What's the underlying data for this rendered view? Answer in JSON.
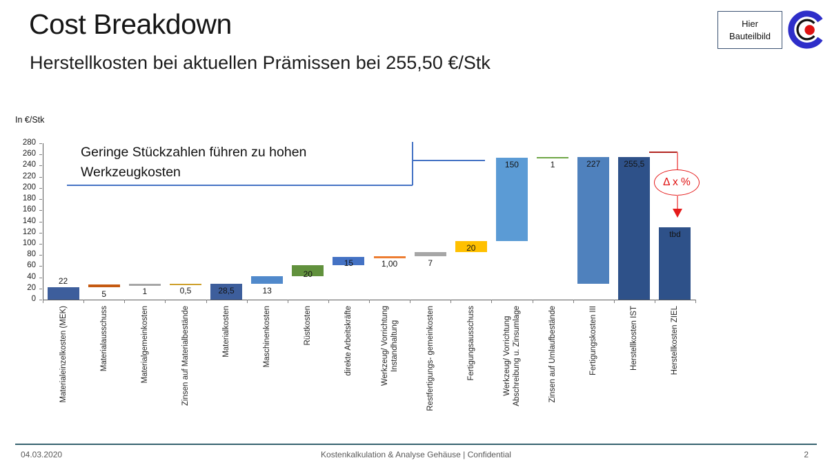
{
  "slide": {
    "title": "Cost Breakdown",
    "subtitle": "Herstellkosten bei aktuellen Prämissen bei 255,50 €/Stk",
    "placeholder_box": "Hier\nBauteilbild",
    "footer": {
      "date": "04.03.2020",
      "center": "Kostenkalkulation & Analyse Gehäuse | Confidential",
      "page": "2"
    }
  },
  "annotation": {
    "text": "Geringe Stückzahlen führen zu hohen\nWerkzeugkosten"
  },
  "delta_badge": {
    "label": "Δ x %"
  },
  "chart_data": {
    "type": "bar",
    "subtype": "waterfall",
    "unit_label": "In €/Stk",
    "ylim": [
      0,
      280
    ],
    "ytick_step": 20,
    "grid": false,
    "legend": false,
    "categories": [
      {
        "name": "Materialeinzelkosten (MEK)",
        "label": "22",
        "value": 22,
        "start": 0,
        "end": 22,
        "color": "#3d5e9c",
        "label_pos": "above"
      },
      {
        "name": "Materialausschuss",
        "label": "5",
        "value": 5,
        "start": 22,
        "end": 27,
        "color": "#c55a11",
        "label_pos": "below"
      },
      {
        "name": "Materialgemeinkosten",
        "label": "1",
        "value": 1,
        "start": 27,
        "end": 28,
        "color": "#a6a6a6",
        "label_pos": "below"
      },
      {
        "name": "Zinsen auf Materialbestände",
        "label": "0,5",
        "value": 0.5,
        "start": 28,
        "end": 28.5,
        "color": "#cea02c",
        "label_pos": "below"
      },
      {
        "name": "Materialkosten",
        "label": "28,5",
        "value": 28.5,
        "start": 0,
        "end": 28.5,
        "color": "#3d5e9c",
        "label_pos": "inside"
      },
      {
        "name": "Maschinenkosten",
        "label": "13",
        "value": 13,
        "start": 28.5,
        "end": 41.5,
        "color": "#5089cb",
        "label_pos": "below"
      },
      {
        "name": "Rüstkosten",
        "label": "20",
        "value": 20,
        "start": 41.5,
        "end": 61.5,
        "color": "#61913d",
        "label_pos": "edge"
      },
      {
        "name": "direkte Arbeitskräfte",
        "label": "15",
        "value": 15,
        "start": 61.5,
        "end": 76.5,
        "color": "#4472c4",
        "label_pos": "edge"
      },
      {
        "name": "Werkzeug/ Vorrichtung\nInstandhaltung",
        "label": "1,00",
        "value": 1,
        "start": 76.5,
        "end": 77.5,
        "color": "#ed7d31",
        "label_pos": "below"
      },
      {
        "name": "Restfertigungs- gemeinkosten",
        "label": "7",
        "value": 7,
        "start": 77.5,
        "end": 84.5,
        "color": "#a6a6a6",
        "label_pos": "below"
      },
      {
        "name": "Fertigungsausschuss",
        "label": "20",
        "value": 20,
        "start": 84.5,
        "end": 104.5,
        "color": "#ffc000",
        "label_pos": "inside"
      },
      {
        "name": "Werkzeug/ Vorrichtung\nAbschreibung u. Zinsumlage",
        "label": "150",
        "value": 150,
        "start": 104.5,
        "end": 254.5,
        "color": "#5b9bd5",
        "label_pos": "inside"
      },
      {
        "name": "Zinsen auf Umlaufbestände",
        "label": "1",
        "value": 1,
        "start": 254.5,
        "end": 255.5,
        "color": "#6da544",
        "label_pos": "below"
      },
      {
        "name": "Fertigungskosten III",
        "label": "227",
        "value": 227,
        "start": 28.5,
        "end": 255.5,
        "color": "#4f81bd",
        "label_pos": "inside"
      },
      {
        "name": "Herstellkosten IST",
        "label": "255,5",
        "value": 255.5,
        "start": 0,
        "end": 255.5,
        "color": "#2e5189",
        "label_pos": "inside"
      },
      {
        "name": "Herstellkosten ZIEL",
        "label": "tbd",
        "value": null,
        "start": 0,
        "end": 130,
        "color": "#2e5189",
        "label_pos": "inside"
      }
    ]
  }
}
